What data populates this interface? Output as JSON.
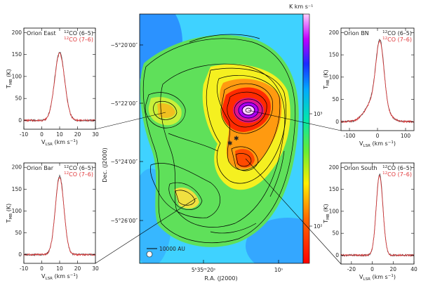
{
  "colors": {
    "line_65": "#444444",
    "line_76": "#e0383a",
    "frame": "#000000",
    "leader": "#000000",
    "contour": "#000000"
  },
  "panels": [
    {
      "id": "orion-east",
      "title": "Orion East",
      "legend": {
        "a_sup": "12",
        "a": "CO (6–5)",
        "b_sup": "12",
        "b": "CO (7–6)"
      },
      "ylabel_main": "T",
      "ylabel_sub": "MB",
      "ylabel_unit": " (K)",
      "xlabel_main": "V",
      "xlabel_sub": "LSR",
      "xlabel_unit": " (km s",
      "xlabel_exp": "−1",
      "xlabel_close": ")",
      "xlim": [
        -10,
        30
      ],
      "ylim": [
        -20,
        210
      ],
      "xticks": [
        -10,
        0,
        10,
        20,
        30
      ],
      "yticks": [
        0,
        50,
        100,
        150,
        200
      ],
      "center": 10,
      "peak": 155,
      "width": 2.8,
      "wing": 0
    },
    {
      "id": "orion-bn",
      "title": "Orion BN",
      "legend": {
        "a_sup": "12",
        "a": "CO (6–5)",
        "b_sup": "12",
        "b": "CO (7–6)"
      },
      "ylabel_main": "T",
      "ylabel_sub": "MB",
      "ylabel_unit": " (K)",
      "xlabel_main": "V",
      "xlabel_sub": "LSR",
      "xlabel_unit": " (km s",
      "xlabel_exp": "−1",
      "xlabel_close": ")",
      "xlim": [
        -130,
        130
      ],
      "ylim": [
        -20,
        210
      ],
      "xticks": [
        -100,
        0,
        100
      ],
      "yticks": [
        0,
        50,
        100,
        150,
        200
      ],
      "center": 9,
      "peak": 172,
      "width": 14,
      "wing": 1
    },
    {
      "id": "orion-bar",
      "title": "Orion Bar",
      "legend": {
        "a_sup": "12",
        "a": "CO (6–5)",
        "b_sup": "12",
        "b": "CO (7–6)"
      },
      "ylabel_main": "T",
      "ylabel_sub": "MB",
      "ylabel_unit": " (K)",
      "xlabel_main": "V",
      "xlabel_sub": "LSR",
      "xlabel_unit": " (km s",
      "xlabel_exp": "−1",
      "xlabel_close": ")",
      "xlim": [
        -10,
        30
      ],
      "ylim": [
        -20,
        210
      ],
      "xticks": [
        -10,
        0,
        10,
        20,
        30
      ],
      "yticks": [
        0,
        50,
        100,
        150,
        200
      ],
      "center": 10,
      "peak": 180,
      "width": 2.4,
      "wing": 0
    },
    {
      "id": "orion-south",
      "title": "Orion South",
      "legend": {
        "a_sup": "12",
        "a": "CO (6–5)",
        "b_sup": "12",
        "b": "CO (7–6)"
      },
      "ylabel_main": "T",
      "ylabel_sub": "MB",
      "ylabel_unit": " (K)",
      "xlabel_main": "V",
      "xlabel_sub": "LSR",
      "xlabel_unit": " (km s",
      "xlabel_exp": "−1",
      "xlabel_close": ")",
      "xlim": [
        -30,
        40
      ],
      "ylim": [
        -20,
        210
      ],
      "xticks": [
        -20,
        0,
        20,
        40
      ],
      "yticks": [
        0,
        50,
        100,
        150,
        200
      ],
      "center": 7,
      "peak": 185,
      "width": 3.2,
      "wing": 0
    }
  ],
  "map": {
    "dec_label": "Dec. (J2000)",
    "ra_label": "R.A. (J2000)",
    "dec_ticks": [
      "−5°20′00″",
      "−5°22′00″",
      "−5°24′00″",
      "−5°26′00″"
    ],
    "ra_ticks": [
      "5ʰ35ᵐ20ˢ",
      "10ˢ"
    ],
    "scalebar": "10000 AU",
    "colorbar_unit": "K km s⁻¹",
    "colorbar_ticks": [
      "10³",
      "10²"
    ],
    "colorscale": "rainbow",
    "colorbar_scale": "log"
  },
  "chart_data": [
    {
      "type": "line",
      "title": "Orion East",
      "xlabel": "V_LSR (km s^-1)",
      "ylabel": "T_MB (K)",
      "xlim": [
        -10,
        30
      ],
      "ylim": [
        -20,
        210
      ],
      "series": [
        {
          "name": "12CO (6–5)",
          "x": [
            -10,
            0,
            5,
            7,
            8,
            9,
            10,
            11,
            12,
            13,
            15,
            20,
            30
          ],
          "y": [
            0,
            1,
            10,
            40,
            80,
            130,
            155,
            130,
            80,
            40,
            12,
            2,
            0
          ]
        },
        {
          "name": "12CO (7–6)",
          "x": [
            -10,
            0,
            5,
            7,
            8,
            9,
            10,
            11,
            12,
            13,
            15,
            20,
            30
          ],
          "y": [
            0,
            1,
            9,
            38,
            78,
            128,
            152,
            128,
            78,
            38,
            11,
            2,
            0
          ]
        }
      ]
    },
    {
      "type": "line",
      "title": "Orion BN",
      "xlabel": "V_LSR (km s^-1)",
      "ylabel": "T_MB (K)",
      "xlim": [
        -130,
        130
      ],
      "ylim": [
        -20,
        210
      ],
      "series": [
        {
          "name": "12CO (6–5)",
          "x": [
            -130,
            -100,
            -60,
            -40,
            -20,
            0,
            9,
            20,
            40,
            60,
            100,
            130
          ],
          "y": [
            2,
            4,
            14,
            40,
            95,
            150,
            172,
            150,
            70,
            25,
            5,
            2
          ]
        },
        {
          "name": "12CO (7–6)",
          "x": [
            -130,
            -100,
            -60,
            -40,
            -20,
            0,
            9,
            20,
            40,
            60,
            100,
            130
          ],
          "y": [
            2,
            4,
            13,
            38,
            92,
            147,
            168,
            146,
            68,
            24,
            5,
            2
          ]
        }
      ]
    },
    {
      "type": "line",
      "title": "Orion Bar",
      "xlabel": "V_LSR (km s^-1)",
      "ylabel": "T_MB (K)",
      "xlim": [
        -10,
        30
      ],
      "ylim": [
        -20,
        210
      ],
      "series": [
        {
          "name": "12CO (6–5)",
          "x": [
            -10,
            0,
            5,
            7,
            8,
            9,
            10,
            11,
            12,
            13,
            15,
            20,
            30
          ],
          "y": [
            0,
            1,
            6,
            30,
            80,
            150,
            180,
            150,
            80,
            30,
            8,
            1,
            0
          ]
        },
        {
          "name": "12CO (7–6)",
          "x": [
            -10,
            0,
            5,
            7,
            8,
            9,
            10,
            11,
            12,
            13,
            15,
            20,
            30
          ],
          "y": [
            0,
            1,
            6,
            29,
            78,
            147,
            177,
            147,
            78,
            29,
            7,
            1,
            0
          ]
        }
      ]
    },
    {
      "type": "line",
      "title": "Orion South",
      "xlabel": "V_LSR (km s^-1)",
      "ylabel": "T_MB (K)",
      "xlim": [
        -30,
        40
      ],
      "ylim": [
        -20,
        210
      ],
      "series": [
        {
          "name": "12CO (6–5)",
          "x": [
            -30,
            -20,
            -10,
            0,
            3,
            5,
            7,
            9,
            11,
            15,
            20,
            30,
            40
          ],
          "y": [
            0,
            1,
            3,
            28,
            110,
            165,
            185,
            165,
            110,
            30,
            6,
            1,
            0
          ]
        },
        {
          "name": "12CO (7–6)",
          "x": [
            -30,
            -20,
            -10,
            0,
            3,
            5,
            7,
            9,
            11,
            15,
            20,
            30,
            40
          ],
          "y": [
            0,
            1,
            3,
            27,
            108,
            162,
            182,
            162,
            108,
            29,
            6,
            1,
            0
          ]
        }
      ]
    },
    {
      "type": "heatmap",
      "xlabel": "R.A. (J2000)",
      "ylabel": "Dec. (J2000)",
      "colorbar_label": "K km s^-1",
      "colorbar_scale": "log",
      "peak_regions": [
        "Orion BN/KL (strongest)",
        "Orion South",
        "Orion Bar",
        "Orion East"
      ]
    }
  ]
}
